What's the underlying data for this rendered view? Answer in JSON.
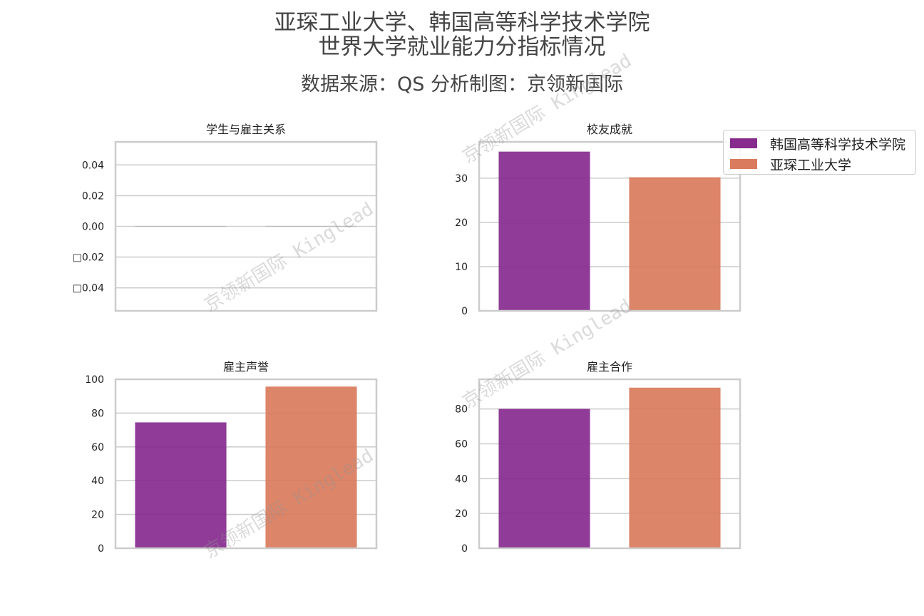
{
  "title_line1": "亚琛工业大学、韩国高等科学技术学院",
  "title_line2": "世界大学就业能力分指标情况",
  "subtitle": "数据来源：QS  分析制图：京领新国际",
  "watermark": "京领新国际 Kinglead",
  "legend": [
    {
      "label": "韩国高等科学技术学院",
      "color": "#862a8e"
    },
    {
      "label": "亚琛工业大学",
      "color": "#d97b5c"
    }
  ],
  "chart_data": [
    {
      "type": "bar",
      "title": "学生与雇主关系",
      "categories": [
        "韩国高等科学技术学院",
        "亚琛工业大学"
      ],
      "values": [
        0,
        0
      ],
      "ylim": [
        -0.055,
        0.055
      ],
      "yticks": [
        -0.04,
        -0.02,
        0.0,
        0.02,
        0.04
      ],
      "ytick_labels": [
        "□0.04",
        "□0.02",
        "0.00",
        "0.02",
        "0.04"
      ],
      "grid": true
    },
    {
      "type": "bar",
      "title": "校友成就",
      "categories": [
        "韩国高等科学技术学院",
        "亚琛工业大学"
      ],
      "values": [
        36,
        30.2
      ],
      "ylim": [
        0,
        38.2
      ],
      "yticks": [
        0,
        10,
        20,
        30
      ],
      "ytick_labels": [
        "0",
        "10",
        "20",
        "30"
      ],
      "grid": true
    },
    {
      "type": "bar",
      "title": "雇主声誉",
      "categories": [
        "韩国高等科学技术学院",
        "亚琛工业大学"
      ],
      "values": [
        74.5,
        95.7
      ],
      "ylim": [
        0,
        100
      ],
      "yticks": [
        0,
        20,
        40,
        60,
        80,
        100
      ],
      "ytick_labels": [
        "0",
        "20",
        "40",
        "60",
        "80",
        "100"
      ],
      "grid": true
    },
    {
      "type": "bar",
      "title": "雇主合作",
      "categories": [
        "韩国高等科学技术学院",
        "亚琛工业大学"
      ],
      "values": [
        80,
        92.2
      ],
      "ylim": [
        0,
        97
      ],
      "yticks": [
        0,
        20,
        40,
        60,
        80
      ],
      "ytick_labels": [
        "0",
        "20",
        "40",
        "60",
        "80"
      ],
      "grid": true
    }
  ]
}
